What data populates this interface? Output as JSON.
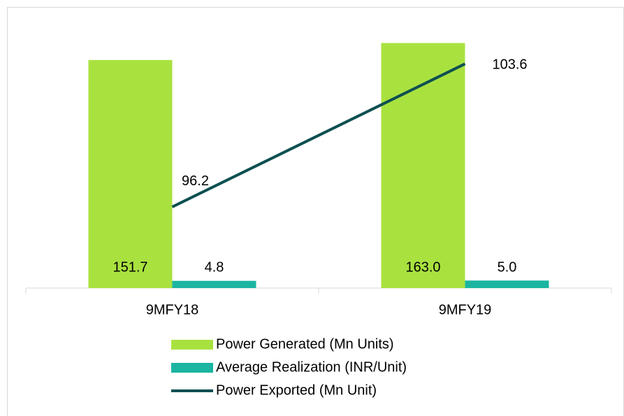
{
  "chart_data": {
    "type": "bar",
    "categories": [
      "9MFY18",
      "9MFY19"
    ],
    "series": [
      {
        "name": "Power Generated (Mn Units)",
        "color": "#a9e23f",
        "values": [
          151.7,
          163.0
        ],
        "value_labels": [
          "151.7",
          "163.0"
        ]
      },
      {
        "name": "Average Realization (INR/Unit)",
        "color": "#1bb5a1",
        "values": [
          4.8,
          5.0
        ],
        "value_labels": [
          "4.8",
          "5.0"
        ]
      },
      {
        "name": "Power Exported (Mn Unit)",
        "type": "line",
        "axis": "y2",
        "color": "#0e4f52",
        "values": [
          96.2,
          103.6
        ],
        "value_labels": [
          "96.2",
          "103.6"
        ]
      }
    ],
    "ylim": [
      0,
      180
    ],
    "y2lim": [
      92,
      106
    ],
    "legend": "bottom"
  }
}
